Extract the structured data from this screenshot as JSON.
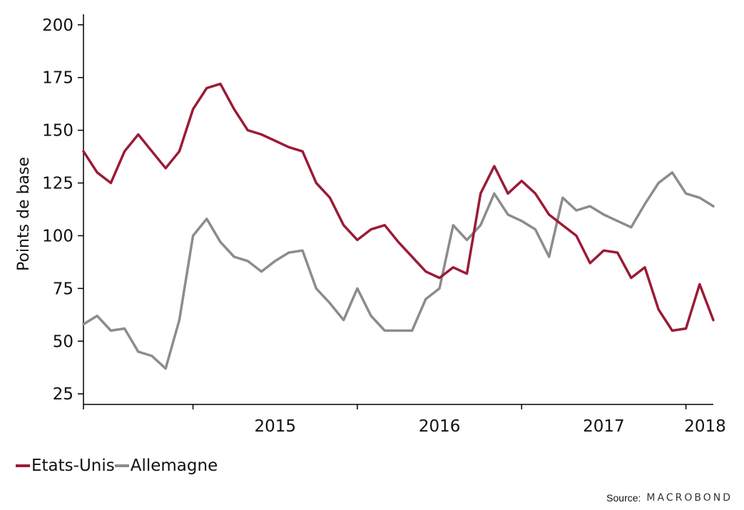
{
  "chart_data": {
    "type": "line",
    "title": "",
    "xlabel": "",
    "ylabel": "Points de base",
    "ylim": [
      20,
      205
    ],
    "y_ticks": [
      25,
      50,
      75,
      100,
      125,
      150,
      175,
      200
    ],
    "x_ticks": [
      "2015",
      "2016",
      "2017",
      "2018"
    ],
    "grid": false,
    "legend_position": "bottom-left",
    "x": [
      "2014-05",
      "2014-06",
      "2014-07",
      "2014-08",
      "2014-09",
      "2014-10",
      "2014-11",
      "2014-12",
      "2015-01",
      "2015-02",
      "2015-03",
      "2015-04",
      "2015-05",
      "2015-06",
      "2015-07",
      "2015-08",
      "2015-09",
      "2015-10",
      "2015-11",
      "2015-12",
      "2016-01",
      "2016-02",
      "2016-03",
      "2016-04",
      "2016-05",
      "2016-06",
      "2016-07",
      "2016-08",
      "2016-09",
      "2016-10",
      "2016-11",
      "2016-12",
      "2017-01",
      "2017-02",
      "2017-03",
      "2017-04",
      "2017-05",
      "2017-06",
      "2017-07",
      "2017-08",
      "2017-09",
      "2017-10",
      "2017-11",
      "2017-12",
      "2018-01",
      "2018-02",
      "2018-03"
    ],
    "series": [
      {
        "name": "Etats-Unis",
        "color": "#9b1b35",
        "values": [
          140,
          130,
          125,
          140,
          148,
          140,
          132,
          140,
          160,
          170,
          172,
          160,
          150,
          148,
          145,
          142,
          140,
          125,
          118,
          105,
          98,
          103,
          105,
          97,
          90,
          83,
          80,
          85,
          82,
          120,
          133,
          120,
          126,
          120,
          110,
          105,
          100,
          87,
          93,
          92,
          80,
          85,
          65,
          55,
          56,
          77,
          60
        ]
      },
      {
        "name": "Allemagne",
        "color": "#8c8c8c",
        "values": [
          58,
          62,
          55,
          56,
          45,
          43,
          37,
          60,
          100,
          108,
          97,
          90,
          88,
          83,
          88,
          92,
          93,
          75,
          68,
          60,
          75,
          62,
          55,
          55,
          55,
          70,
          75,
          105,
          98,
          105,
          120,
          110,
          107,
          103,
          90,
          118,
          112,
          114,
          110,
          107,
          104,
          115,
          125,
          130,
          120,
          118,
          114
        ]
      }
    ]
  },
  "legend": {
    "items": [
      {
        "label": "Etats-Unis",
        "color": "#9b1b35"
      },
      {
        "label": "Allemagne",
        "color": "#8c8c8c"
      }
    ]
  },
  "source": {
    "label": "Source:",
    "brand": "MACROBOND"
  }
}
